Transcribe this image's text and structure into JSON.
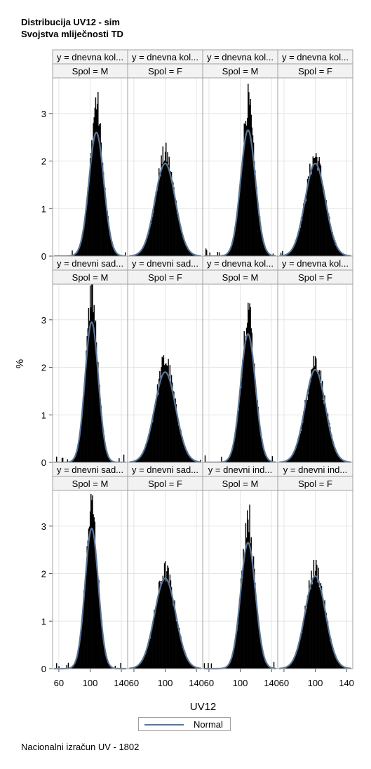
{
  "titles": {
    "line1": "Distribucija UV12 - sim",
    "line2": "Svojstva mliječnosti TD"
  },
  "footer": "Nacionalni izračun UV - 1802",
  "colors": {
    "bars": "#000000",
    "normal_curve": "#5a7596",
    "header_bg": "#f2f2f2",
    "grid": "#e6e6e6",
    "frame": "#a0a0a0"
  },
  "chart_data": {
    "type": "histogram-panel",
    "xlabel": "UV12",
    "ylabel": "%",
    "xlim": [
      52,
      148
    ],
    "ylim": [
      0,
      3.75
    ],
    "xticks": [
      60,
      100,
      140
    ],
    "yticks": [
      0,
      1,
      2,
      3
    ],
    "grid": true,
    "legend": {
      "position": "bottom",
      "entries": [
        "Normal"
      ]
    },
    "panels": [
      {
        "row": 0,
        "col": 0,
        "y_label": "y = dnevna kol...",
        "spol_label": "Spol = M",
        "mean": 108,
        "sd": 9.5,
        "curve_peak": 2.6,
        "hist_peak": 3.25
      },
      {
        "row": 0,
        "col": 1,
        "y_label": "y = dnevna kol...",
        "spol_label": "Spol = F",
        "mean": 100,
        "sd": 13,
        "curve_peak": 1.95,
        "hist_peak": 2.15
      },
      {
        "row": 0,
        "col": 2,
        "y_label": "y = dnevna kol...",
        "spol_label": "Spol = M",
        "mean": 110,
        "sd": 9.5,
        "curve_peak": 2.65,
        "hist_peak": 3.25
      },
      {
        "row": 0,
        "col": 3,
        "y_label": "y = dnevna kol...",
        "spol_label": "Spol = F",
        "mean": 100,
        "sd": 13,
        "curve_peak": 1.95,
        "hist_peak": 2.1
      },
      {
        "row": 1,
        "col": 0,
        "y_label": "y = dnevni sad...",
        "spol_label": "Spol = M",
        "mean": 102,
        "sd": 8.5,
        "curve_peak": 2.95,
        "hist_peak": 3.65
      },
      {
        "row": 1,
        "col": 1,
        "y_label": "y = dnevni sad...",
        "spol_label": "Spol = F",
        "mean": 100,
        "sd": 13.5,
        "curve_peak": 1.9,
        "hist_peak": 2.15
      },
      {
        "row": 1,
        "col": 2,
        "y_label": "y = dnevna kol...",
        "spol_label": "Spol = M",
        "mean": 110,
        "sd": 9.5,
        "curve_peak": 2.7,
        "hist_peak": 3.3
      },
      {
        "row": 1,
        "col": 3,
        "y_label": "y = dnevna kol...",
        "spol_label": "Spol = F",
        "mean": 100,
        "sd": 13,
        "curve_peak": 1.95,
        "hist_peak": 2.15
      },
      {
        "row": 2,
        "col": 0,
        "y_label": "y = dnevni sad...",
        "spol_label": "Spol = M",
        "mean": 102,
        "sd": 8.5,
        "curve_peak": 2.95,
        "hist_peak": 3.45
      },
      {
        "row": 2,
        "col": 1,
        "y_label": "y = dnevni sad...",
        "spol_label": "Spol = F",
        "mean": 100,
        "sd": 13.5,
        "curve_peak": 1.9,
        "hist_peak": 2.05
      },
      {
        "row": 2,
        "col": 2,
        "y_label": "y = dnevni ind...",
        "spol_label": "Spol = M",
        "mean": 110,
        "sd": 9.5,
        "curve_peak": 2.65,
        "hist_peak": 3.25
      },
      {
        "row": 2,
        "col": 3,
        "y_label": "y = dnevni ind...",
        "spol_label": "Spol = F",
        "mean": 100,
        "sd": 13,
        "curve_peak": 1.95,
        "hist_peak": 2.1
      }
    ]
  }
}
